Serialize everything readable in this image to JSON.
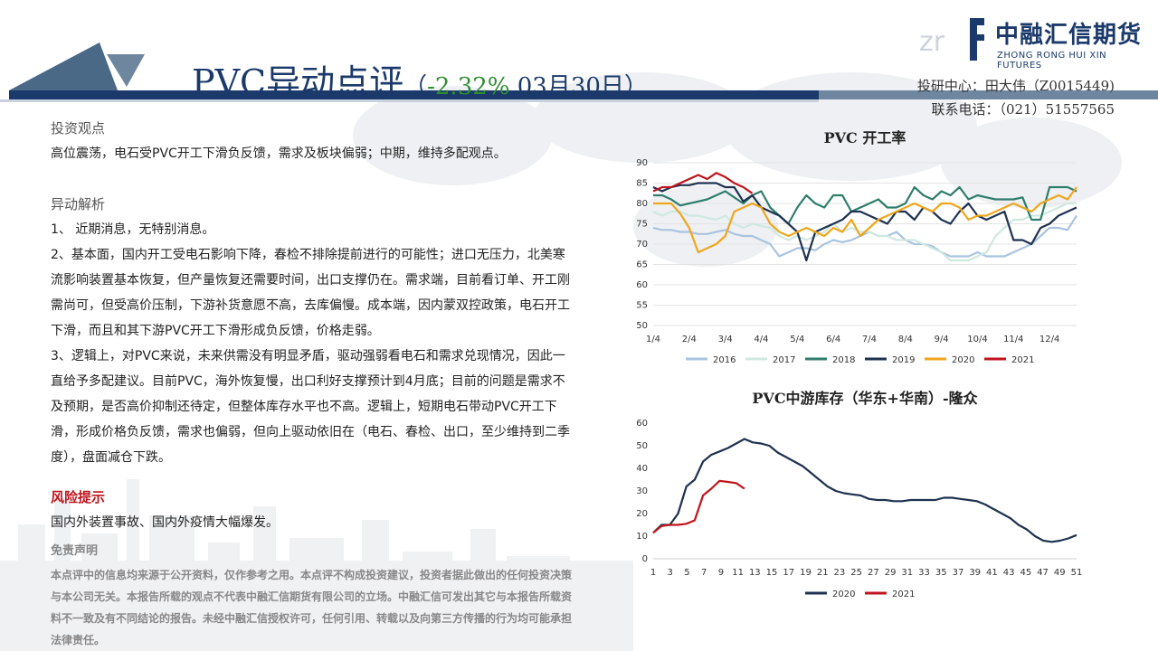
{
  "header": {
    "title_main": "PVC异动点评",
    "paren_open": "（",
    "pct": "-2.32%",
    "date": " 03月30日",
    "paren_close": "）",
    "contact_line1": "投研中心：田大伟（Z0015449)",
    "contact_line2": "联系电话：（021）51557565"
  },
  "logo": {
    "mark": "zr",
    "cn": "中融汇信期货",
    "en": "ZHONG RONG HUI XIN FUTURES"
  },
  "left": {
    "view_title": "投资观点",
    "view_text": "高位震荡，电石受PVC开工下滑负反馈，需求及板块偏弱；中期，维持多配观点。",
    "analysis_title": "异动解析",
    "p1": "1、 近期消息，无特别消息。",
    "p2": "2、基本面，国内开工受电石影响下降，春检不排除提前进行的可能性；进口无压力，北美寒流影响装置基本恢复，但产量恢复还需要时间，出口支撑仍在。需求端，目前看订单、开工刚需尚可，但受高价压制，下游补货意愿不高，去库偏慢。成本端，因内蒙双控政策，电石开工下滑，而且和其下游PVC开工下滑形成负反馈，价格走弱。",
    "p3": "3、逻辑上，对PVC来说，未来供需没有明显矛盾，驱动强弱看电石和需求兑现情况，因此一直给予多配建议。目前PVC，海外恢复慢，出口利好支撑预计到4月底；目前的问题是需求不及预期，是否高价抑制还待定，但整体库存水平也不高。逻辑上，短期电石带动PVC开工下滑，形成价格负反馈，需求也偏弱，但向上驱动依旧在（电石、春检、出口，至少维持到二季度），盘面减仓下跌。",
    "risk_title": "风险提示",
    "risk_text": "国内外装置事故、国内外疫情大幅爆发。"
  },
  "disclaimer": {
    "title": "免责声明",
    "text": "本点评中的信息均来源于公开资料，仅作参考之用。本点评不构成投资建议，投资者据此做出的任何投资决策与本公司无关。本报告所载的观点不代表中融汇信期货有限公司的立场。中融汇信可发出其它与本报告所载资料不一致及有不同结论的报告。未经中融汇信授权许可，任何引用、转载以及向第三方传播的行为均可能承担法律责任。"
  },
  "chart_data": [
    {
      "type": "line",
      "title": "PVC 开工率",
      "xlabel": "",
      "ylabel": "",
      "ylim": [
        50,
        90
      ],
      "yticks": [
        50,
        55,
        60,
        65,
        70,
        75,
        80,
        85,
        90
      ],
      "xticks": [
        "1/4",
        "2/4",
        "3/4",
        "4/4",
        "5/4",
        "6/4",
        "7/4",
        "8/4",
        "9/4",
        "10/4",
        "11/4",
        "12/4"
      ],
      "x_points": 48,
      "legend_position": "bottom",
      "grid": true,
      "series": [
        {
          "name": "2016",
          "color": "#a9c4e0",
          "values": [
            74,
            73.5,
            73.5,
            73,
            73,
            72.5,
            72.5,
            73,
            73.5,
            72.5,
            72,
            72,
            71,
            70,
            67,
            68,
            69,
            69,
            68.5,
            70,
            71,
            70.5,
            71,
            72,
            73,
            72,
            72,
            73,
            71,
            70,
            70,
            69.5,
            68,
            67,
            67,
            67,
            68,
            67,
            67,
            67,
            68,
            69,
            70,
            72,
            74,
            74,
            73.5,
            77
          ]
        },
        {
          "name": "2017",
          "color": "#cfe8e0",
          "values": [
            78,
            77,
            78,
            78,
            77,
            77,
            76.5,
            76,
            77,
            75,
            74,
            75,
            74.5,
            74,
            72,
            71,
            72,
            71,
            72,
            73,
            75,
            73,
            74,
            73,
            73,
            72,
            72,
            71,
            71,
            71,
            70,
            69,
            68,
            66,
            66,
            66,
            67,
            68,
            72,
            74,
            76,
            76,
            77,
            77,
            78,
            79,
            80,
            80
          ]
        },
        {
          "name": "2018",
          "color": "#2e7d6b",
          "values": [
            82,
            82,
            81,
            79.5,
            80,
            80.5,
            81,
            82,
            83,
            81.5,
            80,
            82,
            83,
            79,
            77,
            75,
            79,
            82,
            80,
            79,
            82,
            82,
            78,
            79,
            80,
            81,
            79,
            79,
            80,
            84,
            82,
            81,
            83,
            82,
            84,
            81,
            82,
            81.5,
            81,
            81,
            81,
            81.5,
            76,
            76,
            84,
            84,
            84,
            83
          ]
        },
        {
          "name": "2019",
          "color": "#1e3250",
          "values": [
            84,
            83,
            84,
            84.5,
            84.5,
            85,
            85,
            85,
            84,
            84,
            80.5,
            82,
            79,
            78,
            77,
            75,
            73,
            66,
            73,
            74,
            75,
            76,
            78,
            78,
            77,
            76,
            75,
            78,
            78,
            76,
            79,
            78,
            76,
            75,
            78,
            80,
            77,
            76,
            77,
            78,
            71,
            71,
            70,
            74,
            75,
            77,
            78,
            79
          ]
        },
        {
          "name": "2020",
          "color": "#f0a61c",
          "values": [
            80,
            80,
            80,
            77.5,
            74,
            68,
            69,
            70,
            72,
            78,
            79,
            80,
            79,
            75,
            73,
            72,
            73,
            74,
            73,
            72,
            74,
            73,
            76,
            72,
            74,
            76,
            77,
            78,
            79,
            80,
            79,
            78,
            80,
            80,
            79,
            76,
            77,
            77,
            78,
            79,
            80,
            79,
            78,
            80,
            81,
            82,
            81,
            84
          ]
        },
        {
          "name": "2021",
          "color": "#c0141c",
          "values": [
            83,
            84,
            84,
            85,
            86,
            87,
            86,
            87.5,
            86.5,
            85,
            84,
            82.5
          ]
        }
      ]
    },
    {
      "type": "line",
      "title": "PVC中游库存（华东+华南）-隆众",
      "xlabel": "",
      "ylabel": "",
      "ylim": [
        0,
        60
      ],
      "yticks": [
        0,
        10,
        20,
        30,
        40,
        50,
        60
      ],
      "xticks": [
        "1",
        "3",
        "5",
        "7",
        "9",
        "11",
        "13",
        "15",
        "17",
        "19",
        "21",
        "23",
        "25",
        "27",
        "29",
        "31",
        "33",
        "35",
        "37",
        "39",
        "41",
        "43",
        "45",
        "47",
        "49",
        "51"
      ],
      "legend_position": "bottom",
      "grid": false,
      "series": [
        {
          "name": "2020",
          "color": "#1e3250",
          "values": [
            11.5,
            15,
            15,
            20,
            32,
            35,
            43,
            46,
            47.5,
            49,
            51,
            53,
            51.5,
            51,
            50,
            47,
            45,
            43,
            41,
            38,
            35,
            32,
            30,
            29,
            28.5,
            28,
            26.5,
            26,
            26,
            25.5,
            25.5,
            26,
            26,
            26,
            26,
            27,
            27,
            26.5,
            26,
            25.5,
            24,
            22,
            20,
            18,
            15,
            13,
            10,
            8,
            7.5,
            8,
            9,
            10.5
          ]
        },
        {
          "name": "2021",
          "color": "#c0141c",
          "values": [
            11.5,
            14.5,
            15,
            15,
            15.5,
            17,
            28,
            31,
            34.5,
            34,
            33.5,
            31
          ]
        }
      ]
    }
  ]
}
